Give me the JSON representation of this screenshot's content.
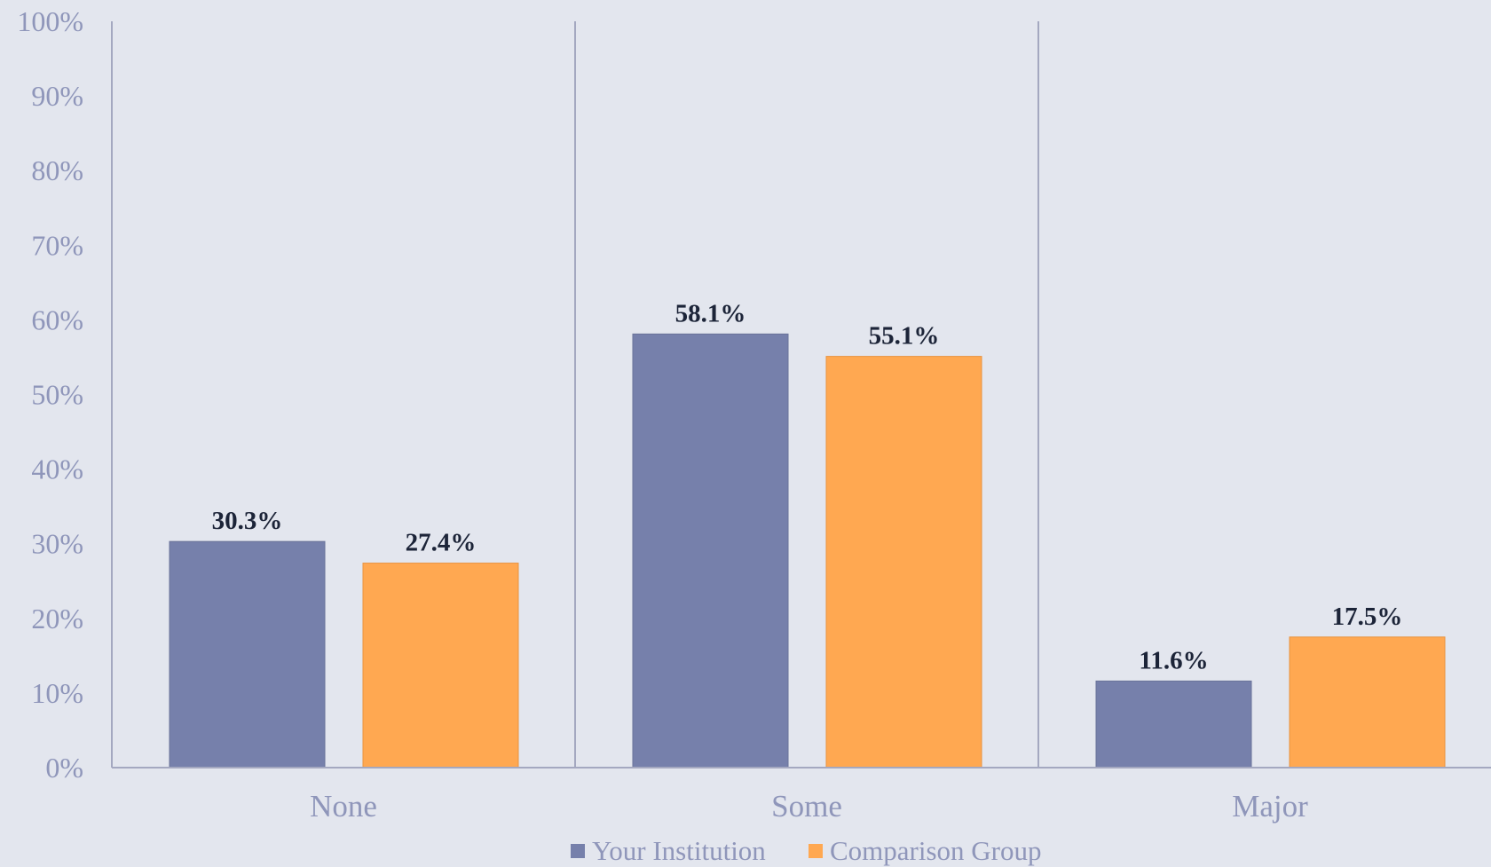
{
  "chart_data": {
    "type": "bar",
    "categories": [
      "None",
      "Some",
      "Major"
    ],
    "series": [
      {
        "name": "Your Institution",
        "values": [
          30.3,
          58.1,
          11.6
        ],
        "color": "#7680ab"
      },
      {
        "name": "Comparison Group",
        "values": [
          27.4,
          55.1,
          17.5
        ],
        "color": "#ffa851"
      }
    ],
    "data_labels": [
      [
        "30.3%",
        "58.1%",
        "11.6%"
      ],
      [
        "27.4%",
        "55.1%",
        "17.5%"
      ]
    ],
    "y_ticks": [
      "0%",
      "10%",
      "20%",
      "30%",
      "40%",
      "50%",
      "60%",
      "70%",
      "80%",
      "90%",
      "100%"
    ],
    "ylim": [
      0,
      100
    ],
    "title": "",
    "xlabel": "",
    "ylabel": "",
    "grid": "vertical category separators",
    "legend_position": "bottom"
  },
  "colors": {
    "background": "#e3e6ee",
    "axis": "#a4a8c0",
    "tick_text": "#8f96ba",
    "data_label_text": "#1c2438"
  }
}
